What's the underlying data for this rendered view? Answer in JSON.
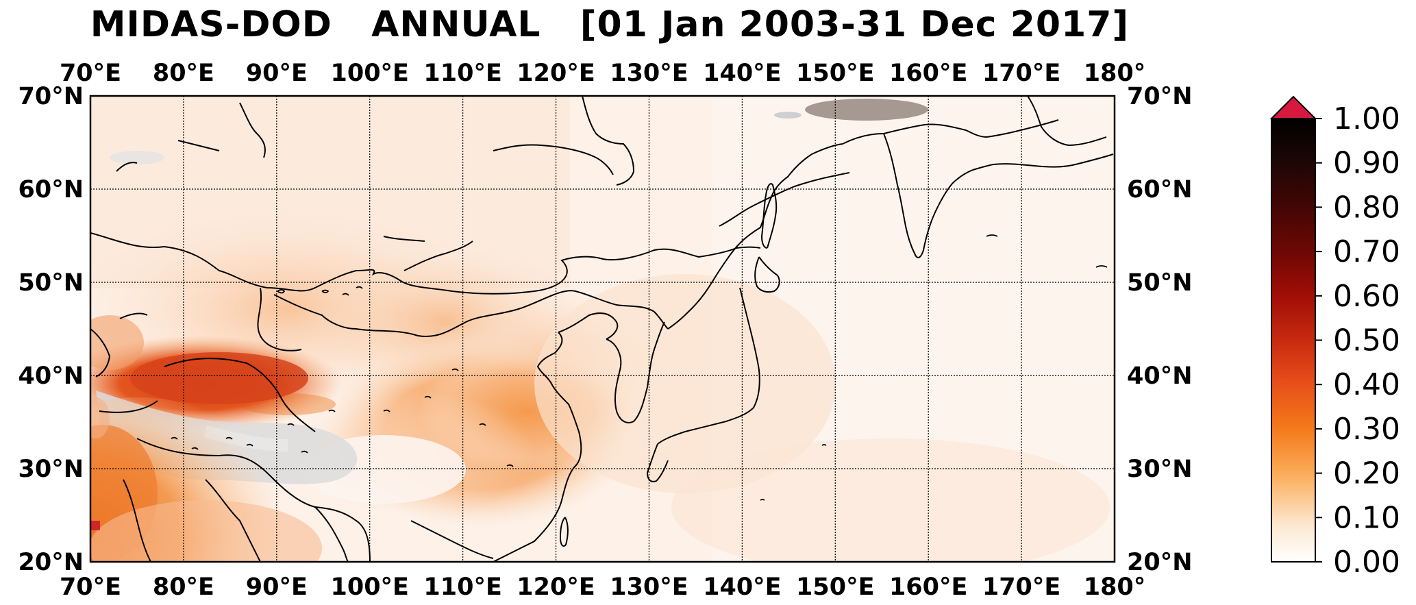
{
  "title": "MIDAS-DOD   ANNUAL   [01 Jan 2003-31 Dec 2017]",
  "map": {
    "lon_range": [
      70,
      180
    ],
    "lat_range": [
      20,
      70
    ],
    "lon_ticks": [
      "70°E",
      "80°E",
      "90°E",
      "100°E",
      "110°E",
      "120°E",
      "130°E",
      "140°E",
      "150°E",
      "160°E",
      "170°E",
      "180°"
    ],
    "lat_ticks": [
      "20°N",
      "30°N",
      "40°N",
      "50°N",
      "60°N",
      "70°N"
    ],
    "gridlines": true,
    "colors": {
      "background_low": "#fdf3ec",
      "mid": "#f6a35c",
      "high": "#d9431e",
      "no_data": "#d9d9d9",
      "coastline": "#000000"
    }
  },
  "colorbar": {
    "ticks": [
      "0.00",
      "0.10",
      "0.20",
      "0.30",
      "0.40",
      "0.50",
      "0.60",
      "0.70",
      "0.80",
      "0.90",
      "1.00"
    ],
    "extend": "max",
    "extend_color": "#d7193f",
    "colormap": "white-orange-red-black"
  }
}
